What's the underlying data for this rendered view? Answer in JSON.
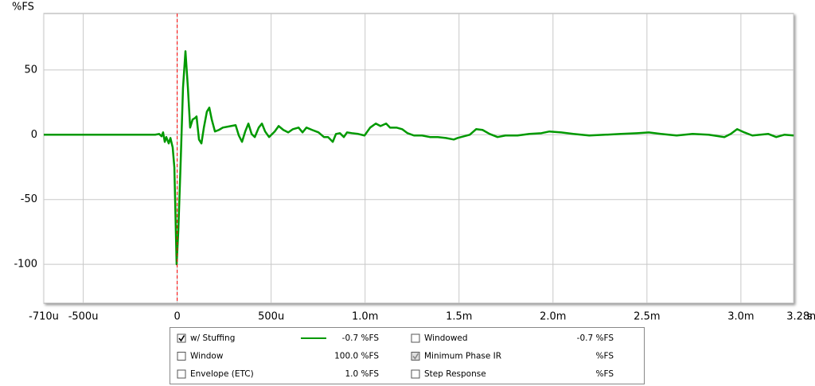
{
  "chart_data": {
    "type": "line",
    "y_label": "%FS",
    "x_unit": "s",
    "xlim": [
      -0.00071,
      0.00328
    ],
    "ylim": [
      -130,
      93.5
    ],
    "xticks": [
      {
        "value": -0.00071,
        "label": "-710u"
      },
      {
        "value": -0.0005,
        "label": "-500u"
      },
      0,
      {
        "value": 0.0005,
        "label": "500u"
      },
      {
        "value": 0.001,
        "label": "1.0m"
      },
      {
        "value": 0.0015,
        "label": "1.5m"
      },
      {
        "value": 0.002,
        "label": "2.0m"
      },
      {
        "value": 0.0025,
        "label": "2.5m"
      },
      {
        "value": 0.003,
        "label": "3.0m"
      },
      {
        "value": 0.00328,
        "label": "3.28m"
      }
    ],
    "yticks": [
      -100,
      -50,
      0,
      50
    ],
    "grid": true,
    "vline": {
      "x": 0,
      "color": "#ff0000"
    },
    "x": [
      -0.00071,
      -0.000308,
      -0.000117,
      -9.6e-05,
      -8.3e-05,
      -7.5e-05,
      -6.6e-05,
      -5.8e-05,
      -4.5e-05,
      -3.6e-05,
      -2.4e-05,
      -1.5e-05,
      -3e-06,
      6e-06,
      1.9e-05,
      3.1e-05,
      4.4e-05,
      5.7e-05,
      6.9e-05,
      8.2e-05,
      9.5e-05,
      0.000103,
      0.000116,
      0.000129,
      0.000142,
      0.000158,
      0.000171,
      0.000184,
      0.000201,
      0.000222,
      0.000243,
      0.000286,
      0.000311,
      0.000328,
      0.000345,
      0.000362,
      0.000379,
      0.000396,
      0.000413,
      0.000434,
      0.000451,
      0.000468,
      0.000489,
      0.000519,
      0.00054,
      0.000565,
      0.000591,
      0.000616,
      0.000646,
      0.000667,
      0.000688,
      0.000718,
      0.000752,
      0.000781,
      0.000803,
      0.000828,
      0.000845,
      0.000866,
      0.000887,
      0.000904,
      0.00093,
      0.000963,
      0.000997,
      0.001027,
      0.001057,
      0.001082,
      0.001112,
      0.001133,
      0.001167,
      0.001197,
      0.001226,
      0.00126,
      0.001303,
      0.001345,
      0.001387,
      0.00143,
      0.001472,
      0.001493,
      0.001557,
      0.001591,
      0.001625,
      0.001663,
      0.001705,
      0.001747,
      0.001811,
      0.001875,
      0.001938,
      0.001981,
      0.002044,
      0.002108,
      0.002193,
      0.002277,
      0.002362,
      0.002447,
      0.00251,
      0.002574,
      0.002658,
      0.002743,
      0.002828,
      0.002912,
      0.002946,
      0.00298,
      0.003018,
      0.003061,
      0.003103,
      0.003146,
      0.003188,
      0.003231,
      0.003281
    ],
    "series": [
      {
        "name": "w/ Stuffing",
        "color": "#009900",
        "values": [
          0,
          0,
          0,
          0.6,
          -1.2,
          1.8,
          -5.5,
          -1.8,
          -6.7,
          -2.5,
          -9.8,
          -25.2,
          -100,
          -74.2,
          -19,
          36.2,
          64.4,
          36.2,
          5.5,
          11.7,
          12.9,
          14.1,
          -3.7,
          -6.7,
          5.5,
          17.8,
          20.9,
          11.7,
          2.5,
          3.7,
          5.5,
          6.7,
          7.4,
          -0.6,
          -5.5,
          2.5,
          8.6,
          0.6,
          -1.8,
          5.5,
          8.6,
          2.5,
          -1.8,
          2.5,
          6.7,
          3.7,
          1.8,
          4.3,
          5.5,
          1.8,
          5.5,
          3.7,
          1.8,
          -1.8,
          -1.8,
          -5.5,
          0.6,
          1.2,
          -1.8,
          1.8,
          1.2,
          0.6,
          -0.6,
          5.5,
          8.6,
          6.7,
          8.6,
          5.5,
          5.5,
          4.3,
          1.2,
          -0.6,
          -0.6,
          -1.8,
          -1.8,
          -2.5,
          -3.7,
          -2.5,
          0,
          4.3,
          3.7,
          0.6,
          -1.8,
          -0.6,
          -0.6,
          0.6,
          1.2,
          2.5,
          1.8,
          0.6,
          -0.6,
          0,
          0.6,
          1.2,
          1.8,
          0.6,
          -0.6,
          0.6,
          0,
          -1.8,
          0.6,
          4.3,
          1.8,
          -0.6,
          0,
          0.6,
          -1.8,
          0,
          -0.6
        ]
      }
    ]
  },
  "panel": {
    "items": [
      {
        "label": "w/ Stuffing",
        "checked": true,
        "readout": "-0.7 %FS",
        "color": "#008800",
        "readout_color": "#009900",
        "swatch": true
      },
      {
        "label": "Windowed",
        "checked": false,
        "readout": "-0.7 %FS",
        "color": "#00aa00",
        "readout_color": "#00aa00",
        "swatch": false
      },
      {
        "label": "Window",
        "checked": false,
        "readout": "100.0 %FS",
        "color": "#0000cc",
        "readout_color": "#0000cc",
        "swatch": false
      },
      {
        "label": "Minimum Phase IR",
        "checked": true,
        "disabled": true,
        "readout": "%FS",
        "color": "#808080",
        "readout_color": "#a0a0a0",
        "swatch": false
      },
      {
        "label": "Envelope (ETC)",
        "checked": false,
        "readout": "1.0 %FS",
        "color": "#005500",
        "readout_color": "#005500",
        "swatch": false
      },
      {
        "label": "Step Response",
        "checked": false,
        "readout": "%FS",
        "color": "#003300",
        "readout_color": "#003300",
        "swatch": false
      }
    ]
  }
}
